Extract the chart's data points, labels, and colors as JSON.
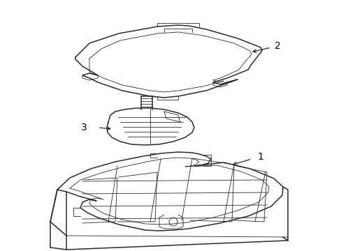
{
  "bg_color": "#ffffff",
  "line_color": "#2a2a2a",
  "label_color": "#000000",
  "fig_width": 4.89,
  "fig_height": 3.6,
  "dpi": 100,
  "lw_main": 1.1,
  "lw_thin": 0.6,
  "lw_med": 0.8
}
